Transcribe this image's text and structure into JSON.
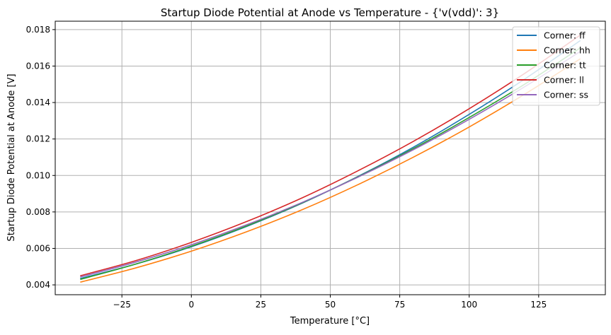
{
  "chart_data": {
    "type": "line",
    "title": "Startup Diode Potential at Anode vs Temperature - {'v(vdd)': 3}",
    "xlabel": "Temperature [°C]",
    "ylabel": "Startup Diode Potential at Anode [V]",
    "xlim": [
      -49,
      149
    ],
    "ylim": [
      0.00346,
      0.01846
    ],
    "xticks": [
      -25,
      0,
      25,
      50,
      75,
      100,
      125
    ],
    "xtick_labels": [
      "−25",
      "0",
      "25",
      "50",
      "75",
      "100",
      "125"
    ],
    "yticks": [
      0.004,
      0.006,
      0.008,
      0.01,
      0.012,
      0.014,
      0.016,
      0.018
    ],
    "ytick_labels": [
      "0.004",
      "0.006",
      "0.008",
      "0.010",
      "0.012",
      "0.014",
      "0.016",
      "0.018"
    ],
    "grid": true,
    "legend_position": "top-right",
    "x": [
      -40,
      -20,
      0,
      20,
      40,
      60,
      80,
      100,
      120,
      140
    ],
    "series": [
      {
        "name": "Corner: ff",
        "color": "#1f77b4",
        "values": [
          0.00435,
          0.00514,
          0.00609,
          0.00721,
          0.00849,
          0.00995,
          0.01156,
          0.01335,
          0.01529,
          0.0174
        ]
      },
      {
        "name": "Corner: hh",
        "color": "#ff7f0e",
        "values": [
          0.00415,
          0.00493,
          0.00585,
          0.00692,
          0.00813,
          0.0095,
          0.01101,
          0.01266,
          0.01446,
          0.0164
        ]
      },
      {
        "name": "Corner: tt",
        "color": "#2ca02c",
        "values": [
          0.0043,
          0.00514,
          0.00612,
          0.00724,
          0.00851,
          0.00993,
          0.01148,
          0.01318,
          0.01501,
          0.017
        ]
      },
      {
        "name": "Corner: ll",
        "color": "#d62728",
        "values": [
          0.0045,
          0.00533,
          0.00633,
          0.00748,
          0.00878,
          0.01026,
          0.01188,
          0.01366,
          0.0156,
          0.0177
        ]
      },
      {
        "name": "Corner: ss",
        "color": "#9467bd",
        "values": [
          0.00443,
          0.00525,
          0.0062,
          0.0073,
          0.00853,
          0.00991,
          0.01142,
          0.01308,
          0.01487,
          0.0168
        ]
      }
    ]
  }
}
